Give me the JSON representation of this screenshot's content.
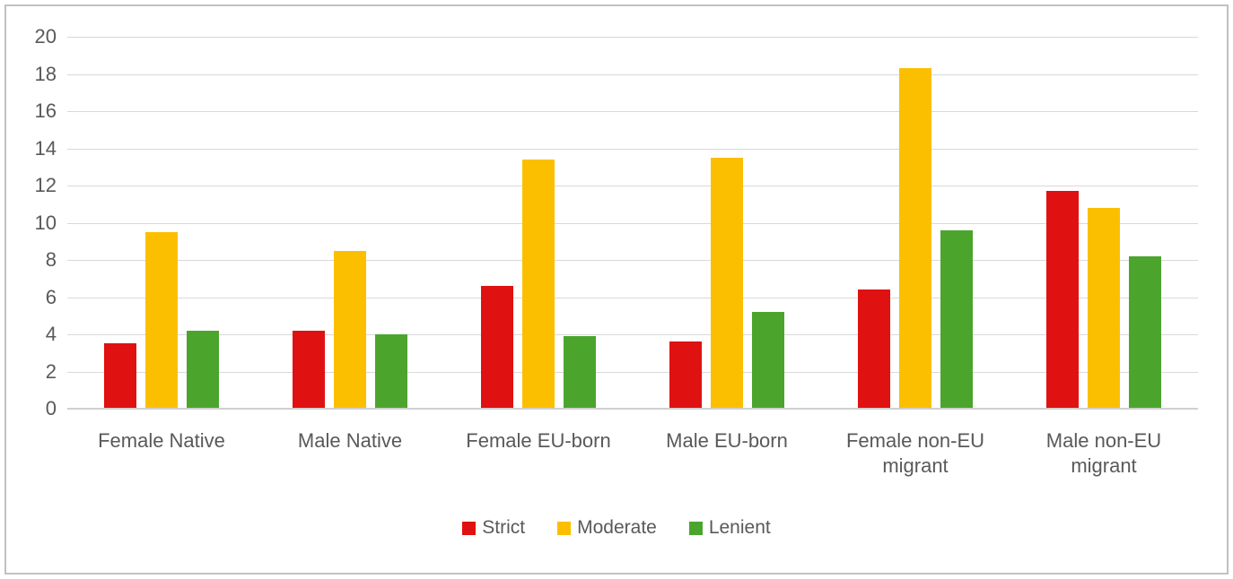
{
  "chart_data": {
    "type": "bar",
    "title": "",
    "categories": [
      "Female Native",
      "Male Native",
      "Female EU-born",
      "Male EU-born",
      "Female non-EU migrant",
      "Male non-EU migrant"
    ],
    "series": [
      {
        "name": "Strict",
        "color": "#e01111",
        "values": [
          3.5,
          4.2,
          6.6,
          3.6,
          6.4,
          11.7
        ]
      },
      {
        "name": "Moderate",
        "color": "#fcbf00",
        "values": [
          9.5,
          8.5,
          13.4,
          13.5,
          18.3,
          10.8
        ]
      },
      {
        "name": "Lenient",
        "color": "#4ba52d",
        "values": [
          4.2,
          4.0,
          3.9,
          5.2,
          9.6,
          8.2
        ]
      }
    ],
    "xlabel": "",
    "ylabel": "",
    "ylim": [
      0,
      20
    ],
    "yticks": [
      0,
      2,
      4,
      6,
      8,
      10,
      12,
      14,
      16,
      18,
      20
    ],
    "grid": true,
    "legend_position": "bottom"
  },
  "colors": {
    "background": "#ffffff",
    "frame_border": "#c1c1c1",
    "gridline": "#d9d9d9",
    "axis_line": "#d0d0d0",
    "text": "#595959"
  }
}
